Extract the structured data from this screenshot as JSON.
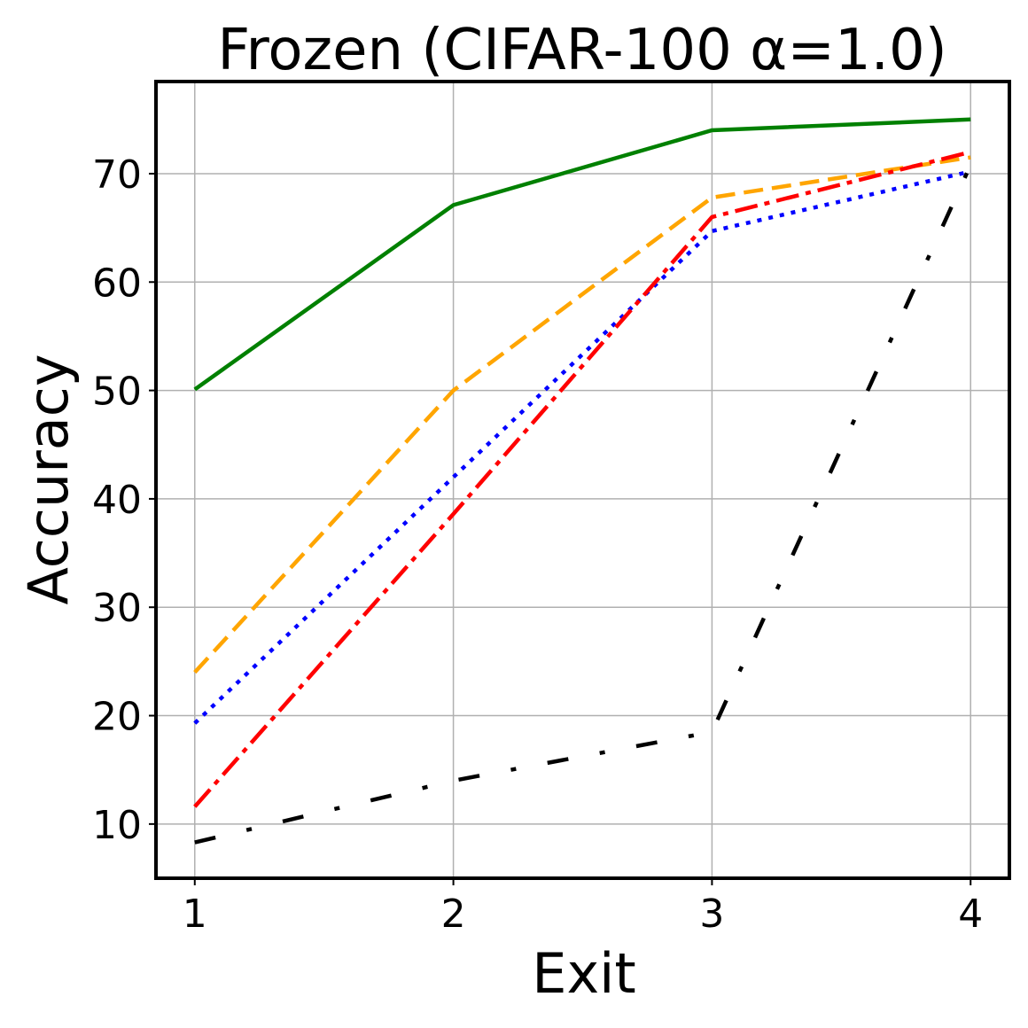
{
  "chart_data": {
    "type": "line",
    "title": "Frozen (CIFAR-100 α=1.0)",
    "xlabel": "Exit",
    "ylabel": "Accuracy",
    "x": [
      1,
      2,
      3,
      4
    ],
    "xticks": [
      "1",
      "2",
      "3",
      "4"
    ],
    "yticks": [
      "10",
      "20",
      "30",
      "40",
      "50",
      "60",
      "70"
    ],
    "xlim": [
      0.85,
      4.15
    ],
    "ylim": [
      5,
      78.5
    ],
    "grid": true,
    "series": [
      {
        "color": "#008000",
        "style": "solid",
        "values": [
          50.1,
          67.1,
          74.0,
          75.0
        ]
      },
      {
        "color": "#FFA500",
        "style": "dashed",
        "values": [
          24.0,
          50.0,
          67.8,
          71.5
        ]
      },
      {
        "color": "#0000FF",
        "style": "dotted",
        "values": [
          19.3,
          42.0,
          64.7,
          70.2
        ]
      },
      {
        "color": "#FF0000",
        "style": "dashdot",
        "values": [
          11.6,
          38.6,
          66.0,
          72.0
        ]
      },
      {
        "color": "#000000",
        "style": "loosedashdot",
        "values": [
          8.3,
          14.0,
          18.5,
          70.8
        ]
      }
    ]
  }
}
